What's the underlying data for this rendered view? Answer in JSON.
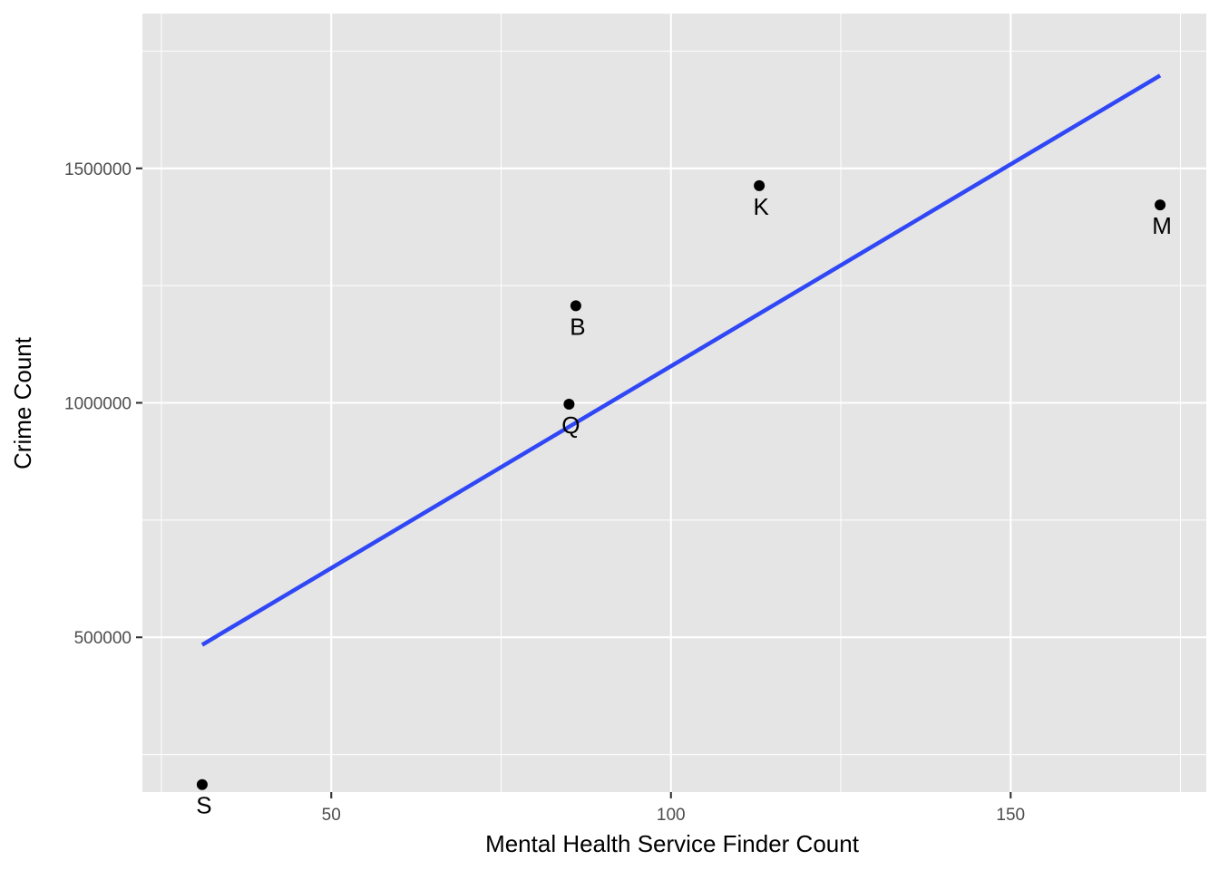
{
  "chart_data": {
    "type": "scatter",
    "xlabel": "Mental Health Service Finder Count",
    "ylabel": "Crime Count",
    "xlim": [
      22.2,
      178.8
    ],
    "ylim": [
      170000,
      1830000
    ],
    "x_ticks": [
      50,
      100,
      150
    ],
    "x_tick_labels": [
      "50",
      "100",
      "150"
    ],
    "x_minor_ticks": [
      25,
      75,
      125,
      175
    ],
    "y_ticks": [
      500000,
      1000000,
      1500000
    ],
    "y_tick_labels": [
      "500000",
      "1000000",
      "1500000"
    ],
    "y_minor_ticks": [
      250000,
      750000,
      1250000,
      1750000
    ],
    "grid": true,
    "legend": "none",
    "points": [
      {
        "label": "S",
        "x": 31,
        "y": 186000
      },
      {
        "label": "Q",
        "x": 85,
        "y": 997000
      },
      {
        "label": "B",
        "x": 86,
        "y": 1207000
      },
      {
        "label": "K",
        "x": 113,
        "y": 1463000
      },
      {
        "label": "M",
        "x": 172,
        "y": 1422000
      }
    ],
    "fit_line": {
      "x": [
        31,
        172
      ],
      "y": [
        484000,
        1698000
      ],
      "color": "#3047f5"
    },
    "colors": {
      "panel": "#e5e5e5",
      "grid": "#ffffff",
      "points": "#000000",
      "tick_labels": "#4d4d4d"
    }
  }
}
